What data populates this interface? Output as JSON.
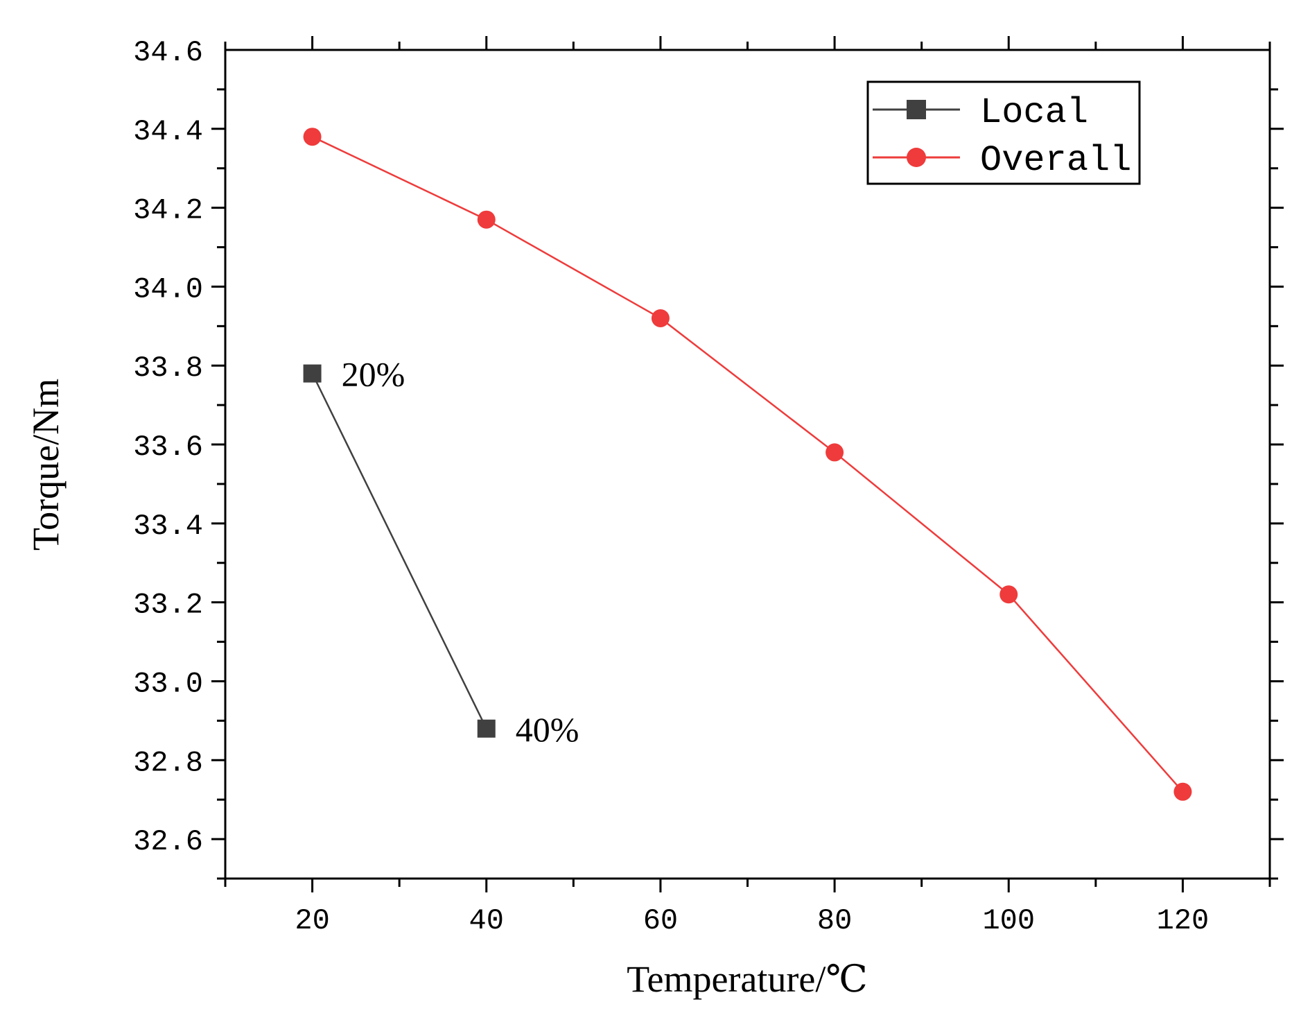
{
  "chart_data": {
    "type": "line",
    "title": "",
    "xlabel": "Temperature/℃",
    "ylabel": "Torque/Nm",
    "xlim": [
      10,
      130
    ],
    "ylim": [
      32.5,
      34.6
    ],
    "xticks": [
      20,
      40,
      60,
      80,
      100,
      120
    ],
    "xtick_labels": [
      "20",
      "40",
      "60",
      "80",
      "100",
      "120"
    ],
    "yticks": [
      32.6,
      32.8,
      33.0,
      33.2,
      33.4,
      33.6,
      33.8,
      34.0,
      34.2,
      34.4,
      34.6
    ],
    "ytick_labels": [
      "32.6",
      "32.8",
      "33.0",
      "33.2",
      "33.4",
      "33.6",
      "33.8",
      "34.0",
      "34.2",
      "34.4",
      "34.6"
    ],
    "grid": false,
    "legend_position": "top-right",
    "series": [
      {
        "name": "Local",
        "color": "#404040",
        "marker": "square",
        "x": [
          20,
          40
        ],
        "y": [
          33.78,
          32.88
        ]
      },
      {
        "name": "Overall",
        "color": "#ef3b3b",
        "marker": "circle",
        "x": [
          20,
          40,
          60,
          80,
          100,
          120
        ],
        "y": [
          34.38,
          34.17,
          33.92,
          33.58,
          33.22,
          32.72
        ]
      }
    ],
    "annotations": [
      {
        "text": "20%",
        "series": "Local",
        "x": 20,
        "y": 33.78
      },
      {
        "text": "40%",
        "series": "Local",
        "x": 40,
        "y": 32.88
      }
    ]
  }
}
